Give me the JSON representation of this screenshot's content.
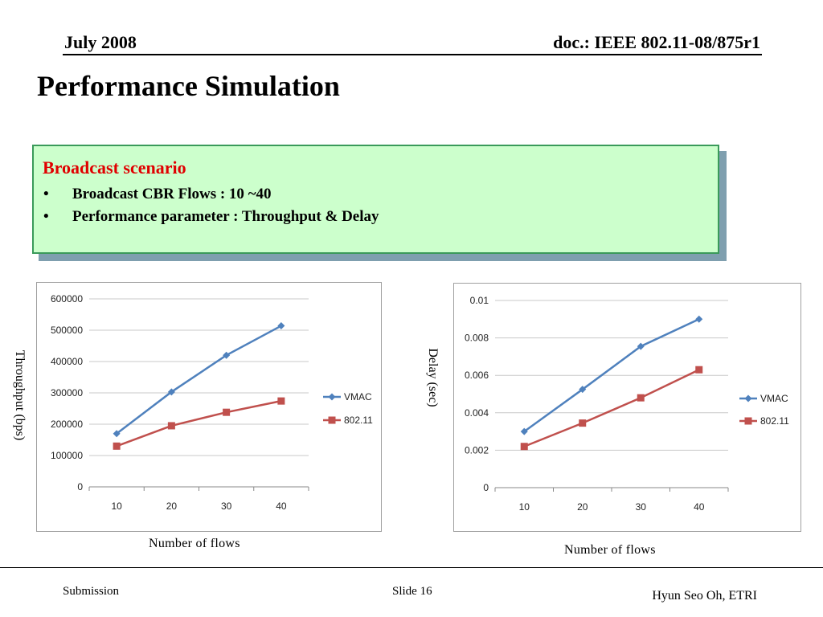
{
  "header": {
    "date": "July 2008",
    "doc": "doc.: IEEE 802.11-08/875r1"
  },
  "title": "Performance Simulation",
  "box": {
    "heading": "Broadcast scenario",
    "bullet_symbol": "•",
    "bullets": [
      "Broadcast CBR Flows : 10 ~40",
      "Performance parameter : Throughput & Delay"
    ]
  },
  "footer": {
    "left": "Submission",
    "middle": "Slide 16",
    "right": "Hyun Seo Oh, ETRI"
  },
  "colors": {
    "vmac": "#4f81bd",
    "ieee": "#c0504d",
    "box_bg": "#ccffcc",
    "heading_red": "#e00000"
  },
  "chart_data": [
    {
      "type": "line",
      "ylabel": "Throughput (bps)",
      "xlabel": "Number of flows",
      "categories": [
        "10",
        "20",
        "30",
        "40"
      ],
      "ylim": [
        0,
        600000
      ],
      "yticks": [
        "0",
        "100000",
        "200000",
        "300000",
        "400000",
        "500000",
        "600000"
      ],
      "grid": true,
      "legend": "right",
      "series": [
        {
          "name": "VMAC",
          "marker": "diamond",
          "values": [
            170000,
            303000,
            420000,
            514000
          ]
        },
        {
          "name": "802.11",
          "marker": "square",
          "values": [
            130000,
            195000,
            238000,
            274000
          ]
        }
      ]
    },
    {
      "type": "line",
      "ylabel": "Delay (sec)",
      "xlabel": "Number of flows",
      "categories": [
        "10",
        "20",
        "30",
        "40"
      ],
      "ylim": [
        0,
        0.01
      ],
      "yticks": [
        "0",
        "0.002",
        "0.004",
        "0.006",
        "0.008",
        "0.01"
      ],
      "grid": true,
      "legend": "right",
      "series": [
        {
          "name": "VMAC",
          "marker": "diamond",
          "values": [
            0.003,
            0.00525,
            0.00755,
            0.009
          ]
        },
        {
          "name": "802.11",
          "marker": "square",
          "values": [
            0.0022,
            0.00345,
            0.0048,
            0.0063
          ]
        }
      ]
    }
  ]
}
